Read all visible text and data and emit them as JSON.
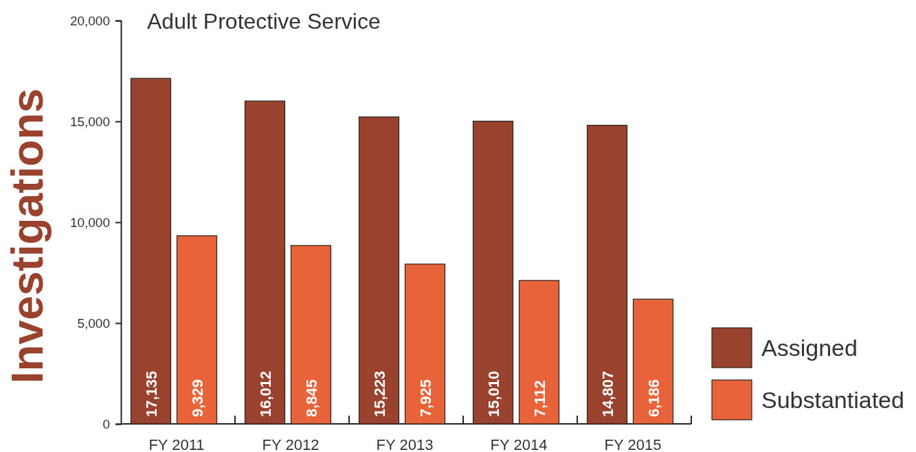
{
  "chart_data": {
    "type": "bar",
    "title": "Adult Protective Service",
    "ylabel": "Investigations",
    "categories": [
      "FY 2011",
      "FY 2012",
      "FY 2013",
      "FY 2014",
      "FY 2015"
    ],
    "series": [
      {
        "name": "Assigned",
        "color": "#99432e",
        "values": [
          17135,
          16012,
          15223,
          15010,
          14807
        ],
        "value_labels": [
          "17,135",
          "16,012",
          "15,223",
          "15,010",
          "14,807"
        ]
      },
      {
        "name": "Substantiated",
        "color": "#e8623a",
        "values": [
          9329,
          8845,
          7925,
          7112,
          6186
        ],
        "value_labels": [
          "9,329",
          "8,845",
          "7,925",
          "7,112",
          "6,186"
        ]
      }
    ],
    "ylim": [
      0,
      20000
    ],
    "yticks": [
      {
        "value": 0,
        "label": "0"
      },
      {
        "value": 5000,
        "label": "5,000"
      },
      {
        "value": 10000,
        "label": "10,000"
      },
      {
        "value": 15000,
        "label": "15,000"
      },
      {
        "value": 20000,
        "label": "20,000"
      }
    ],
    "legend": "bottom right"
  }
}
